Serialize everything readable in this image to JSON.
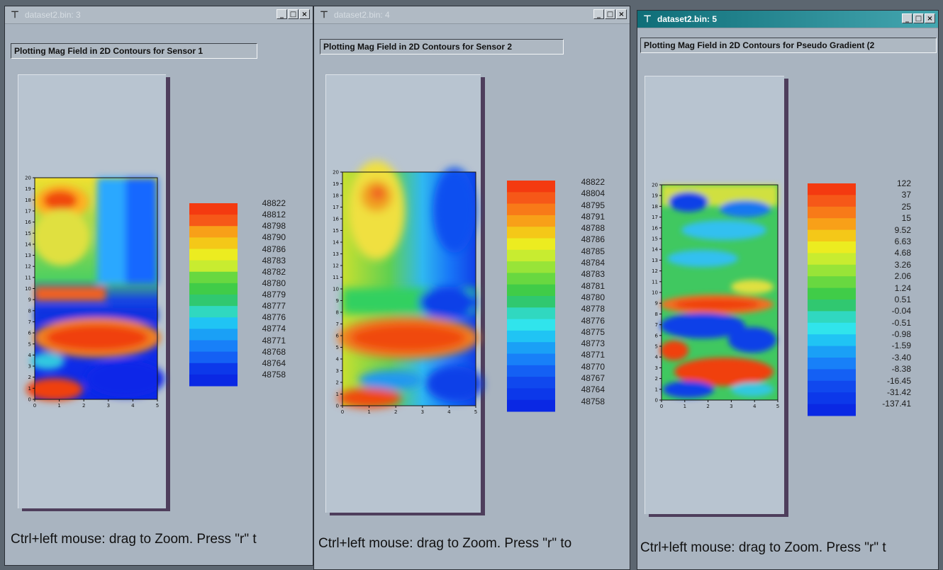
{
  "windows": [
    {
      "title": "dataset2.bin: 3",
      "header": "Plotting Mag Field in 2D Contours for Sensor 1",
      "legend_values": [
        "48822",
        "48812",
        "48798",
        "48790",
        "48786",
        "48783",
        "48782",
        "48780",
        "48779",
        "48777",
        "48776",
        "48774",
        "48771",
        "48768",
        "48764",
        "48758"
      ],
      "hint": "Ctrl+left mouse: drag to Zoom. Press \"r\" t",
      "y_ticks": [
        "0",
        "1",
        "2",
        "3",
        "4",
        "5",
        "6",
        "7",
        "8",
        "9",
        "10",
        "11",
        "12",
        "13",
        "14",
        "15",
        "16",
        "17",
        "18",
        "19",
        "20"
      ],
      "x_ticks": [
        "0",
        "1",
        "2",
        "3",
        "4",
        "5"
      ]
    },
    {
      "title": "dataset2.bin: 4",
      "header": "Plotting Mag Field in 2D Contours for Sensor 2",
      "legend_values": [
        "48822",
        "48804",
        "48795",
        "48791",
        "48788",
        "48786",
        "48785",
        "48784",
        "48783",
        "48781",
        "48780",
        "48778",
        "48776",
        "48775",
        "48773",
        "48771",
        "48770",
        "48767",
        "48764",
        "48758"
      ],
      "hint": "Ctrl+left mouse: drag to Zoom. Press \"r\" to",
      "y_ticks": [
        "0",
        "1",
        "2",
        "3",
        "4",
        "5",
        "6",
        "7",
        "8",
        "9",
        "10",
        "11",
        "12",
        "13",
        "14",
        "15",
        "16",
        "17",
        "18",
        "19",
        "20"
      ],
      "x_ticks": [
        "0",
        "1",
        "2",
        "3",
        "4",
        "5"
      ]
    },
    {
      "title": "dataset2.bin: 5",
      "header": "Plotting Mag Field in 2D Contours for Pseudo Gradient (2",
      "legend_values": [
        "122",
        "37",
        "25",
        "15",
        "9.52",
        "6.63",
        "4.68",
        "3.26",
        "2.06",
        "1.24",
        "0.51",
        "-0.04",
        "-0.51",
        "-0.98",
        "-1.59",
        "-3.40",
        "-8.38",
        "-16.45",
        "-31.42",
        "-137.41"
      ],
      "hint": "Ctrl+left mouse: drag to Zoom. Press \"r\" t",
      "y_ticks": [
        "0",
        "1",
        "2",
        "3",
        "4",
        "5",
        "6",
        "7",
        "8",
        "9",
        "10",
        "11",
        "12",
        "13",
        "14",
        "15",
        "16",
        "17",
        "18",
        "19",
        "20"
      ],
      "x_ticks": [
        "0",
        "1",
        "2",
        "3",
        "4",
        "5"
      ]
    }
  ],
  "icons": {
    "title_icon": "pin-icon",
    "minimize": "minimize-icon",
    "maximize": "maximize-icon",
    "close": "close-icon"
  },
  "colors": {
    "active_title": "#0f6e78",
    "window_bg": "#a9b4c0"
  }
}
